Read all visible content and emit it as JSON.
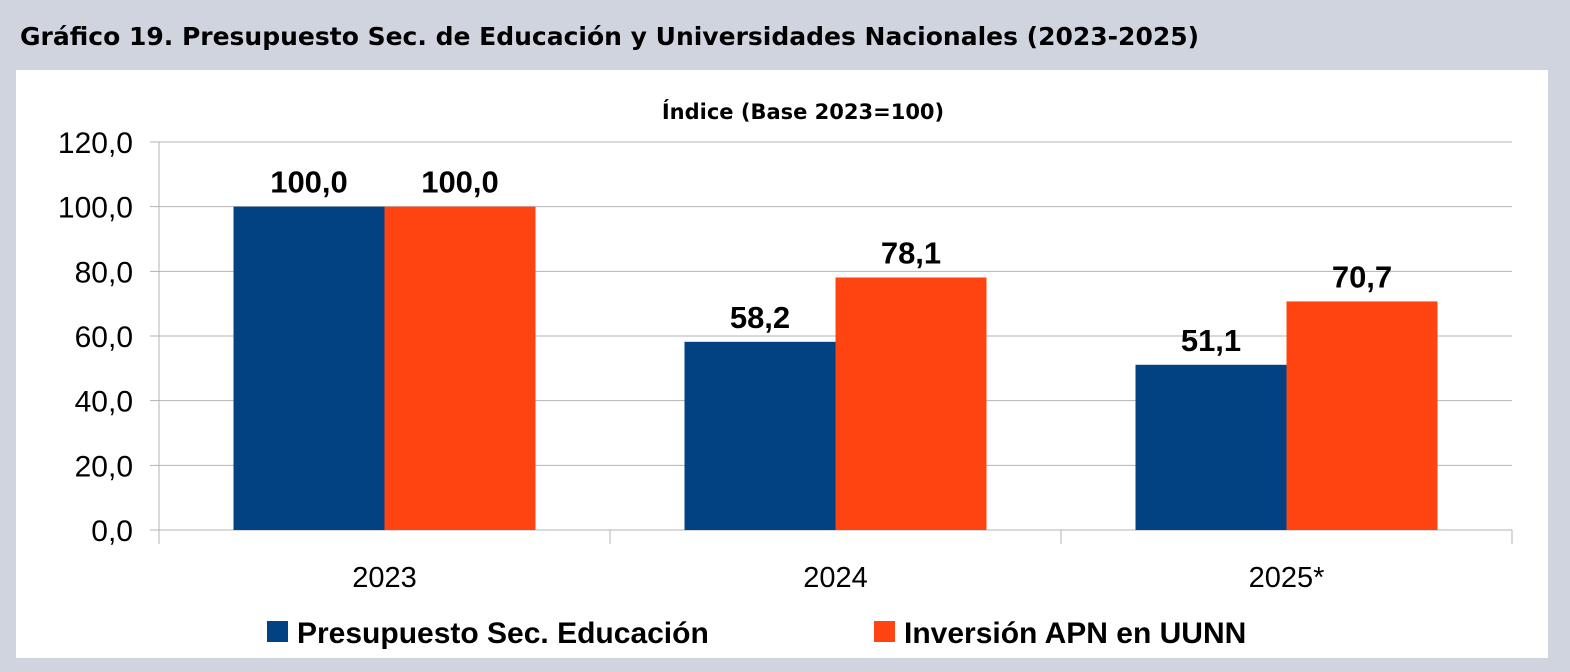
{
  "figure_title": "Gráfico 19. Presupuesto Sec. de Educación y Universidades Nacionales (2023-2025)",
  "chart_data": {
    "type": "bar",
    "title": "Índice (Base 2023=100)",
    "xlabel": "",
    "ylabel": "",
    "categories": [
      "2023",
      "2024",
      "2025*"
    ],
    "series": [
      {
        "name": "Presupuesto Sec. Educación",
        "color": "#024283",
        "values": [
          100.0,
          58.2,
          51.1
        ],
        "labels": [
          "100,0",
          "58,2",
          "51,1"
        ]
      },
      {
        "name": "Inversión APN en UUNN",
        "color": "#ff4411",
        "values": [
          100.0,
          78.1,
          70.7
        ],
        "labels": [
          "100,0",
          "78,1",
          "70,7"
        ]
      }
    ],
    "ylim": [
      0,
      120
    ],
    "yticks": [
      0,
      20,
      40,
      60,
      80,
      100,
      120
    ],
    "ytick_labels": [
      "0,0",
      "20,0",
      "40,0",
      "60,0",
      "80,0",
      "100,0",
      "120,0"
    ],
    "grid": true,
    "legend_position": "bottom"
  }
}
